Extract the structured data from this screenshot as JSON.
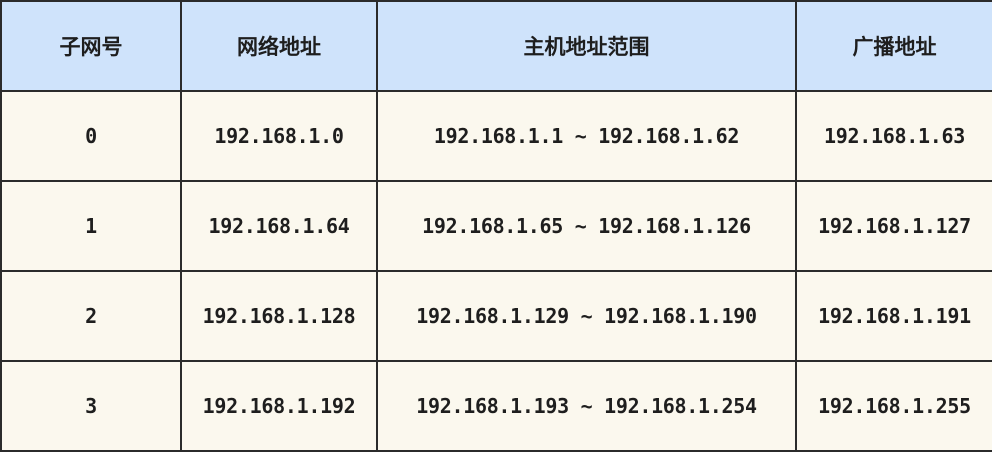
{
  "headers": [
    "子网号",
    "网络地址",
    "主机地址范围",
    "广播地址"
  ],
  "rows": [
    [
      "0",
      "192.168.1.0",
      "192.168.1.1 ~ 192.168.1.62",
      "192.168.1.63"
    ],
    [
      "1",
      "192.168.1.64",
      "192.168.1.65 ~ 192.168.1.126",
      "192.168.1.127"
    ],
    [
      "2",
      "192.168.1.128",
      "192.168.1.129 ~ 192.168.1.190",
      "192.168.1.191"
    ],
    [
      "3",
      "192.168.1.192",
      "192.168.1.193 ~ 192.168.1.254",
      "192.168.1.255"
    ]
  ],
  "colors": {
    "header_bg": "#cfe3fb",
    "body_bg": "#fbf8ee",
    "border": "#2b2b2b"
  }
}
